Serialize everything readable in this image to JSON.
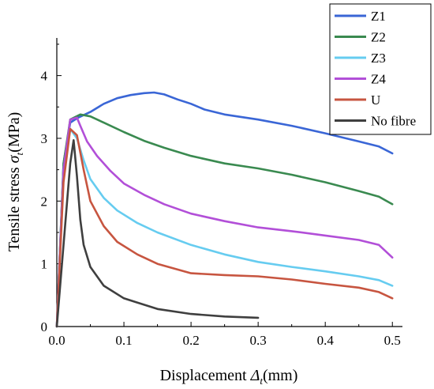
{
  "chart_data": {
    "type": "line",
    "xlabel": "Displacement Δt(mm)",
    "ylabel": "Tensile stress σt(MPa)",
    "xlabel_parts": {
      "pre": "Displacement ",
      "sym": "Δ",
      "sub": "t",
      "post": "(mm)"
    },
    "ylabel_parts": {
      "pre": "Tensile stress ",
      "sym": "σ",
      "sub": "t",
      "post": "(MPa)"
    },
    "xlim": [
      0.0,
      0.515
    ],
    "ylim": [
      0,
      4.6
    ],
    "xticks": [
      "0.0",
      "0.1",
      "0.2",
      "0.3",
      "0.4",
      "0.5"
    ],
    "yticks": [
      "0",
      "1",
      "2",
      "3",
      "4"
    ],
    "grid": false,
    "legend": "top-right",
    "series": [
      {
        "name": "Z1",
        "color": "#3a66d6",
        "x": [
          0,
          0.01,
          0.02,
          0.03,
          0.05,
          0.07,
          0.09,
          0.11,
          0.13,
          0.145,
          0.16,
          0.18,
          0.2,
          0.22,
          0.25,
          0.3,
          0.35,
          0.4,
          0.45,
          0.48,
          0.5
        ],
        "y": [
          0,
          2.6,
          3.25,
          3.32,
          3.42,
          3.55,
          3.64,
          3.69,
          3.72,
          3.73,
          3.7,
          3.62,
          3.55,
          3.46,
          3.38,
          3.3,
          3.2,
          3.08,
          2.95,
          2.87,
          2.76
        ]
      },
      {
        "name": "Z2",
        "color": "#3a8a50",
        "x": [
          0,
          0.01,
          0.02,
          0.035,
          0.05,
          0.07,
          0.1,
          0.13,
          0.16,
          0.2,
          0.25,
          0.3,
          0.35,
          0.4,
          0.45,
          0.48,
          0.5
        ],
        "y": [
          0,
          2.6,
          3.3,
          3.38,
          3.35,
          3.25,
          3.1,
          2.96,
          2.85,
          2.72,
          2.6,
          2.52,
          2.42,
          2.3,
          2.16,
          2.07,
          1.95
        ]
      },
      {
        "name": "Z3",
        "color": "#66ccf0",
        "x": [
          0,
          0.01,
          0.02,
          0.03,
          0.04,
          0.05,
          0.07,
          0.09,
          0.12,
          0.15,
          0.2,
          0.25,
          0.3,
          0.35,
          0.4,
          0.45,
          0.48,
          0.5
        ],
        "y": [
          0,
          2.5,
          3.15,
          3.0,
          2.65,
          2.35,
          2.05,
          1.85,
          1.65,
          1.5,
          1.3,
          1.15,
          1.03,
          0.95,
          0.88,
          0.8,
          0.74,
          0.65
        ]
      },
      {
        "name": "Z4",
        "color": "#b24fd8",
        "x": [
          0,
          0.01,
          0.02,
          0.03,
          0.035,
          0.045,
          0.06,
          0.08,
          0.1,
          0.13,
          0.16,
          0.2,
          0.25,
          0.3,
          0.35,
          0.4,
          0.45,
          0.48,
          0.5
        ],
        "y": [
          0,
          2.5,
          3.3,
          3.33,
          3.2,
          2.95,
          2.72,
          2.48,
          2.28,
          2.1,
          1.95,
          1.8,
          1.68,
          1.58,
          1.52,
          1.45,
          1.38,
          1.3,
          1.1
        ]
      },
      {
        "name": "U",
        "color": "#c75540",
        "x": [
          0,
          0.01,
          0.02,
          0.03,
          0.04,
          0.05,
          0.07,
          0.09,
          0.12,
          0.15,
          0.2,
          0.25,
          0.3,
          0.35,
          0.4,
          0.45,
          0.48,
          0.5
        ],
        "y": [
          0,
          2.3,
          3.15,
          3.05,
          2.5,
          2.0,
          1.6,
          1.35,
          1.15,
          1.0,
          0.85,
          0.82,
          0.8,
          0.75,
          0.68,
          0.62,
          0.55,
          0.45
        ]
      },
      {
        "name": "No fibre",
        "color": "#3f3f3f",
        "x": [
          0,
          0.01,
          0.02,
          0.025,
          0.03,
          0.035,
          0.04,
          0.05,
          0.07,
          0.1,
          0.15,
          0.2,
          0.25,
          0.3
        ],
        "y": [
          0,
          1.3,
          2.6,
          2.97,
          2.4,
          1.7,
          1.3,
          0.95,
          0.65,
          0.45,
          0.28,
          0.2,
          0.16,
          0.14
        ]
      }
    ]
  }
}
